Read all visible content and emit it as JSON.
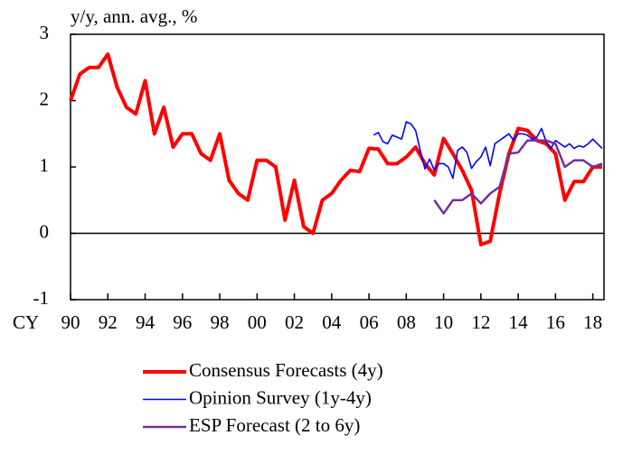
{
  "chart_data": {
    "type": "line",
    "y_label": "y/y, ann. avg., %",
    "x_prefix": "CY",
    "xlim": [
      1990,
      2018.6
    ],
    "xticks": [
      {
        "value": 1990,
        "label": "90"
      },
      {
        "value": 1992,
        "label": "92"
      },
      {
        "value": 1994,
        "label": "94"
      },
      {
        "value": 1996,
        "label": "96"
      },
      {
        "value": 1998,
        "label": "98"
      },
      {
        "value": 2000,
        "label": "00"
      },
      {
        "value": 2002,
        "label": "02"
      },
      {
        "value": 2004,
        "label": "04"
      },
      {
        "value": 2006,
        "label": "06"
      },
      {
        "value": 2008,
        "label": "08"
      },
      {
        "value": 2010,
        "label": "10"
      },
      {
        "value": 2012,
        "label": "12"
      },
      {
        "value": 2014,
        "label": "14"
      },
      {
        "value": 2016,
        "label": "16"
      },
      {
        "value": 2018,
        "label": "18"
      }
    ],
    "ylim": [
      -1,
      3
    ],
    "yticks": [
      -1,
      0,
      1,
      2,
      3
    ],
    "legend": "bottom",
    "series": [
      {
        "name": "Consensus Forecasts (4y)",
        "color": "#ff0000",
        "width": 4,
        "x": [
          1990,
          1990.5,
          1991,
          1991.5,
          1992,
          1992.5,
          1993,
          1993.5,
          1994,
          1994.5,
          1995,
          1995.5,
          1996,
          1996.5,
          1997,
          1997.5,
          1998,
          1998.5,
          1999,
          1999.5,
          2000,
          2000.5,
          2001,
          2001.5,
          2002,
          2002.5,
          2003,
          2003.5,
          2004,
          2004.5,
          2005,
          2005.5,
          2006,
          2006.5,
          2007,
          2007.5,
          2008,
          2008.5,
          2009,
          2009.5,
          2010,
          2010.5,
          2011,
          2011.5,
          2012,
          2012.5,
          2013,
          2013.5,
          2014,
          2014.5,
          2015,
          2015.5,
          2016,
          2016.5,
          2017,
          2017.5,
          2018,
          2018.5
        ],
        "values": [
          2.0,
          2.4,
          2.5,
          2.5,
          2.7,
          2.2,
          1.9,
          1.8,
          2.3,
          1.5,
          1.9,
          1.3,
          1.5,
          1.5,
          1.2,
          1.1,
          1.5,
          0.8,
          0.6,
          0.5,
          1.1,
          1.1,
          1.0,
          0.2,
          0.8,
          0.1,
          0.0,
          0.5,
          0.6,
          0.8,
          0.95,
          0.93,
          1.28,
          1.27,
          1.05,
          1.05,
          1.15,
          1.3,
          1.05,
          0.88,
          1.43,
          1.2,
          0.95,
          0.65,
          -0.17,
          -0.12,
          0.6,
          1.2,
          1.58,
          1.55,
          1.4,
          1.35,
          1.2,
          0.5,
          0.78,
          0.78,
          1.0,
          1.0
        ]
      },
      {
        "name": "Opinion Survey (1y-4y)",
        "color": "#0000ff",
        "width": 1.6,
        "x": [
          2006.25,
          2006.5,
          2006.75,
          2007,
          2007.25,
          2007.5,
          2007.75,
          2008,
          2008.25,
          2008.5,
          2008.75,
          2009,
          2009.25,
          2009.5,
          2009.75,
          2010,
          2010.25,
          2010.5,
          2010.75,
          2011,
          2011.25,
          2011.5,
          2011.75,
          2012,
          2012.25,
          2012.5,
          2012.75,
          2013,
          2013.25,
          2013.5,
          2013.75,
          2014,
          2014.25,
          2014.5,
          2014.75,
          2015,
          2015.25,
          2015.5,
          2015.75,
          2016,
          2016.25,
          2016.5,
          2016.75,
          2017,
          2017.25,
          2017.5,
          2017.75,
          2018,
          2018.25,
          2018.5
        ],
        "values": [
          1.48,
          1.52,
          1.38,
          1.35,
          1.48,
          1.45,
          1.42,
          1.68,
          1.65,
          1.55,
          1.25,
          0.97,
          1.12,
          0.95,
          1.05,
          1.05,
          1.0,
          0.83,
          1.25,
          1.3,
          1.22,
          0.98,
          1.08,
          1.15,
          1.3,
          1.02,
          1.35,
          1.4,
          1.45,
          1.5,
          1.4,
          1.5,
          1.5,
          1.48,
          1.42,
          1.45,
          1.58,
          1.38,
          1.28,
          1.4,
          1.35,
          1.3,
          1.35,
          1.28,
          1.32,
          1.3,
          1.35,
          1.42,
          1.35,
          1.28
        ]
      },
      {
        "name": "ESP Forecast (2 to 6y)",
        "color": "#7030a0",
        "width": 2.5,
        "x": [
          2009.5,
          2010,
          2010.5,
          2011,
          2011.5,
          2012,
          2012.5,
          2013,
          2013.5,
          2014,
          2014.5,
          2015,
          2015.5,
          2016,
          2016.5,
          2017,
          2017.5,
          2018,
          2018.5
        ],
        "values": [
          0.5,
          0.3,
          0.5,
          0.5,
          0.6,
          0.45,
          0.6,
          0.7,
          1.2,
          1.22,
          1.4,
          1.4,
          1.4,
          1.35,
          1.0,
          1.1,
          1.1,
          1.0,
          1.05
        ]
      }
    ]
  }
}
